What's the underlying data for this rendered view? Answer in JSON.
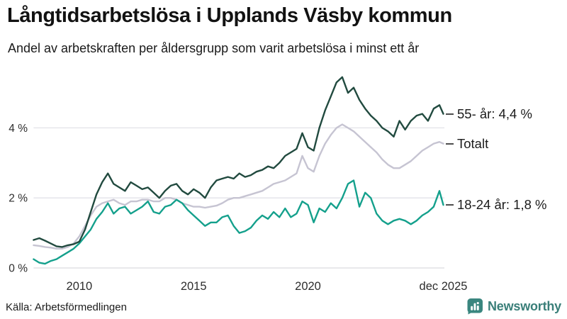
{
  "header": {
    "title": "Långtidsarbetslösa i Upplands Väsby kommun",
    "subtitle": "Andel av arbetskraften per åldersgrupp som varit arbetslösa i minst ett år"
  },
  "footer": {
    "source": "Källa: Arbetsförmedlingen",
    "brand_name": "Newsworthy",
    "brand_icon": "bar-chart-speech-bubble-icon",
    "brand_color": "#3a867f"
  },
  "chart_data": {
    "type": "line",
    "title": "Långtidsarbetslösa i Upplands Väsby kommun",
    "subtitle": "Andel av arbetskraften per åldersgrupp som varit arbetslösa i minst ett år",
    "x_unit": "decimal_year",
    "x_range": [
      2008,
      2025.92
    ],
    "ylim": [
      0,
      5.7
    ],
    "grid": "horizontal",
    "legend_position": "right-of-line-ends",
    "y_ticks": [
      {
        "value": 0,
        "label": "0 %"
      },
      {
        "value": 2,
        "label": "2 %"
      },
      {
        "value": 4,
        "label": "4 %"
      }
    ],
    "x_ticks": [
      {
        "value": 2010,
        "label": "2010"
      },
      {
        "value": 2015,
        "label": "2015"
      },
      {
        "value": 2020,
        "label": "2020"
      },
      {
        "value": 2025.92,
        "label": "dec 2025"
      }
    ],
    "x": [
      2008,
      2008.25,
      2008.5,
      2008.75,
      2009,
      2009.25,
      2009.5,
      2009.75,
      2010,
      2010.25,
      2010.5,
      2010.75,
      2011,
      2011.25,
      2011.5,
      2011.75,
      2012,
      2012.25,
      2012.5,
      2012.75,
      2013,
      2013.25,
      2013.5,
      2013.75,
      2014,
      2014.25,
      2014.5,
      2014.75,
      2015,
      2015.25,
      2015.5,
      2015.75,
      2016,
      2016.25,
      2016.5,
      2016.75,
      2017,
      2017.25,
      2017.5,
      2017.75,
      2018,
      2018.25,
      2018.5,
      2018.75,
      2019,
      2019.25,
      2019.5,
      2019.75,
      2020,
      2020.25,
      2020.5,
      2020.75,
      2021,
      2021.25,
      2021.5,
      2021.75,
      2022,
      2022.25,
      2022.5,
      2022.75,
      2023,
      2023.25,
      2023.5,
      2023.75,
      2024,
      2024.25,
      2024.5,
      2024.75,
      2025,
      2025.25,
      2025.5,
      2025.75,
      2025.92
    ],
    "series": [
      {
        "name": "Totalt",
        "end_label": "Totalt",
        "color": "#c6c4d2",
        "values": [
          0.65,
          0.63,
          0.6,
          0.58,
          0.55,
          0.55,
          0.6,
          0.7,
          0.9,
          1.2,
          1.5,
          1.75,
          1.85,
          1.9,
          1.95,
          1.85,
          1.8,
          1.9,
          1.9,
          1.95,
          1.95,
          1.9,
          1.9,
          2.0,
          2.0,
          1.95,
          1.85,
          1.8,
          1.75,
          1.75,
          1.72,
          1.75,
          1.78,
          1.85,
          1.95,
          2.0,
          2.0,
          2.05,
          2.1,
          2.15,
          2.2,
          2.3,
          2.4,
          2.45,
          2.5,
          2.6,
          2.7,
          3.2,
          2.85,
          2.75,
          3.2,
          3.55,
          3.8,
          4.0,
          4.1,
          4.0,
          3.9,
          3.75,
          3.6,
          3.45,
          3.3,
          3.1,
          2.95,
          2.85,
          2.85,
          2.95,
          3.05,
          3.2,
          3.35,
          3.45,
          3.55,
          3.6,
          3.55
        ]
      },
      {
        "name": "18-24 år",
        "end_label": "18-24 år: 1,8 %",
        "end_value": 1.8,
        "color": "#14a08c",
        "values": [
          0.25,
          0.15,
          0.12,
          0.2,
          0.25,
          0.35,
          0.45,
          0.55,
          0.7,
          0.9,
          1.1,
          1.4,
          1.6,
          1.85,
          1.55,
          1.7,
          1.75,
          1.55,
          1.65,
          1.75,
          1.9,
          1.6,
          1.55,
          1.75,
          1.8,
          1.95,
          1.85,
          1.65,
          1.5,
          1.35,
          1.2,
          1.3,
          1.3,
          1.45,
          1.5,
          1.2,
          1.0,
          1.05,
          1.15,
          1.35,
          1.5,
          1.4,
          1.6,
          1.45,
          1.7,
          1.45,
          1.55,
          1.9,
          1.8,
          1.3,
          1.7,
          1.6,
          1.85,
          1.7,
          2.0,
          2.4,
          2.5,
          1.75,
          2.15,
          2.0,
          1.55,
          1.35,
          1.25,
          1.35,
          1.4,
          1.35,
          1.25,
          1.35,
          1.5,
          1.6,
          1.75,
          2.2,
          1.8
        ]
      },
      {
        "name": "55- år",
        "end_label": "55- år: 4,4 %",
        "end_value": 4.4,
        "color": "#214a3f",
        "values": [
          0.8,
          0.85,
          0.78,
          0.7,
          0.62,
          0.6,
          0.65,
          0.68,
          0.75,
          1.1,
          1.6,
          2.1,
          2.45,
          2.7,
          2.4,
          2.3,
          2.2,
          2.45,
          2.35,
          2.25,
          2.3,
          2.15,
          2.0,
          2.2,
          2.35,
          2.4,
          2.2,
          2.1,
          2.25,
          2.15,
          2.0,
          2.3,
          2.5,
          2.55,
          2.6,
          2.55,
          2.7,
          2.6,
          2.65,
          2.75,
          2.8,
          2.9,
          2.85,
          3.0,
          3.2,
          3.3,
          3.4,
          3.85,
          3.45,
          3.35,
          4.0,
          4.5,
          4.9,
          5.3,
          5.45,
          5.0,
          5.15,
          4.8,
          4.55,
          4.35,
          4.2,
          4.0,
          3.9,
          3.75,
          4.2,
          3.95,
          4.2,
          4.35,
          4.4,
          4.2,
          4.55,
          4.65,
          4.4
        ]
      }
    ]
  }
}
